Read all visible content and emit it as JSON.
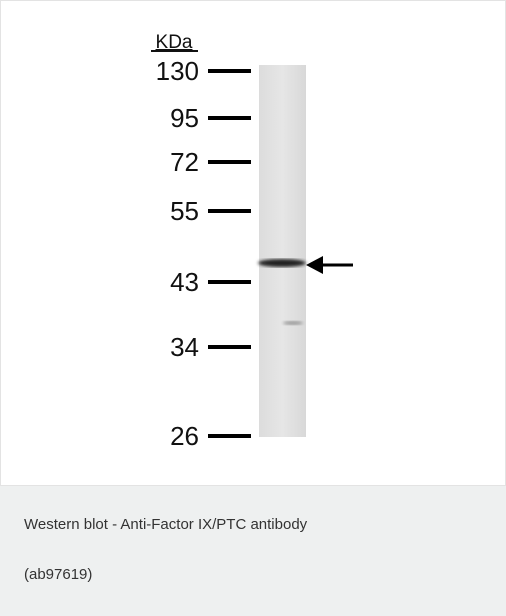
{
  "figure": {
    "unit_label": "KDa",
    "markers": [
      "130",
      "95",
      "72",
      "55",
      "43",
      "34",
      "26"
    ]
  },
  "caption": {
    "line1": "Western blot - Anti-Factor IX/PTC antibody",
    "line2": "(ab97619)"
  }
}
